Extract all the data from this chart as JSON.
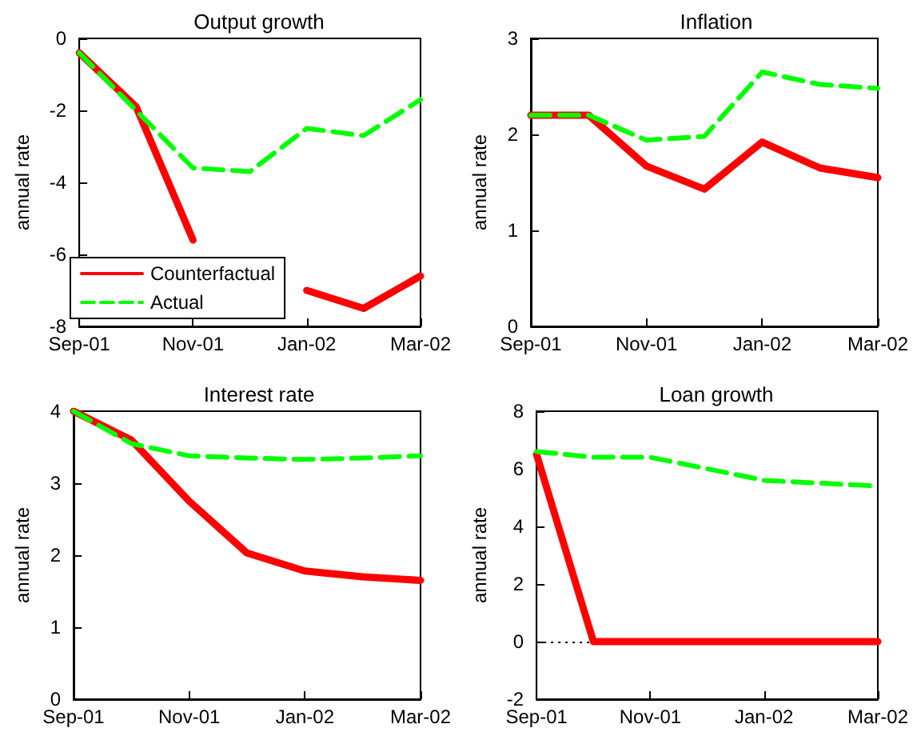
{
  "chart_data": [
    {
      "type": "line",
      "title": "Output growth",
      "ylabel": "annual rate",
      "categories": [
        "Sep-01",
        null,
        "Nov-01",
        null,
        "Jan-02",
        null,
        "Mar-02"
      ],
      "ylim": [
        -8,
        0
      ],
      "yticks": [
        -8,
        -6,
        -4,
        -2,
        0
      ],
      "grid": false,
      "legend": "bottom left",
      "marker": "none",
      "series": [
        {
          "name": "Counterfactual",
          "color": "#ff0000",
          "line_style": "solid",
          "values": [
            -0.4,
            -1.9,
            -5.6,
            null,
            -7.0,
            -7.5,
            -6.6
          ]
        },
        {
          "name": "Actual",
          "color": "#00ff00",
          "line_style": "dashed",
          "values": [
            -0.4,
            -2.0,
            -3.6,
            -3.7,
            -2.5,
            -2.7,
            -1.7
          ]
        }
      ]
    },
    {
      "type": "line",
      "title": "Inflation",
      "ylabel": "annual rate",
      "categories": [
        "Sep-01",
        null,
        "Nov-01",
        null,
        "Jan-02",
        null,
        "Mar-02"
      ],
      "ylim": [
        0,
        3
      ],
      "yticks": [
        0,
        1,
        2,
        3
      ],
      "grid": false,
      "legend": false,
      "marker": "none",
      "series": [
        {
          "color": "#ff0000",
          "line_style": "solid",
          "values": [
            2.2,
            2.2,
            1.67,
            1.43,
            1.92,
            1.65,
            1.55
          ]
        },
        {
          "color": "#00ff00",
          "line_style": "dashed",
          "values": [
            2.2,
            2.2,
            1.94,
            1.98,
            2.65,
            2.52,
            2.48
          ]
        }
      ]
    },
    {
      "type": "line",
      "title": "Interest rate",
      "ylabel": "annual rate",
      "categories": [
        "Sep-01",
        null,
        "Nov-01",
        null,
        "Jan-02",
        null,
        "Mar-02"
      ],
      "ylim": [
        0,
        4
      ],
      "yticks": [
        0,
        1,
        2,
        3,
        4
      ],
      "grid": false,
      "legend": false,
      "marker": "none",
      "series": [
        {
          "color": "#ff0000",
          "line_style": "solid",
          "values": [
            4.0,
            3.6,
            2.75,
            2.03,
            1.78,
            1.7,
            1.65
          ]
        },
        {
          "color": "#00ff00",
          "line_style": "dashed",
          "values": [
            4.0,
            3.55,
            3.38,
            3.35,
            3.33,
            3.35,
            3.38
          ]
        }
      ]
    },
    {
      "type": "line",
      "title": "Loan growth",
      "ylabel": "annual rate",
      "categories": [
        "Sep-01",
        null,
        "Nov-01",
        null,
        "Jan-02",
        null,
        "Mar-02"
      ],
      "ylim": [
        -2,
        8
      ],
      "yticks": [
        -2,
        0,
        2,
        4,
        6,
        8
      ],
      "grid": false,
      "legend": false,
      "marker": "none",
      "ref_lines": [
        {
          "axis": "y",
          "value": 0,
          "color": "#000000",
          "line_style": "dotted"
        }
      ],
      "series": [
        {
          "color": "#ff0000",
          "line_style": "solid",
          "values": [
            6.5,
            0,
            0,
            0,
            0,
            0,
            0
          ]
        },
        {
          "color": "#00ff00",
          "line_style": "dashed",
          "values": [
            6.6,
            6.4,
            6.4,
            6.0,
            5.6,
            5.5,
            5.4
          ]
        }
      ]
    }
  ]
}
